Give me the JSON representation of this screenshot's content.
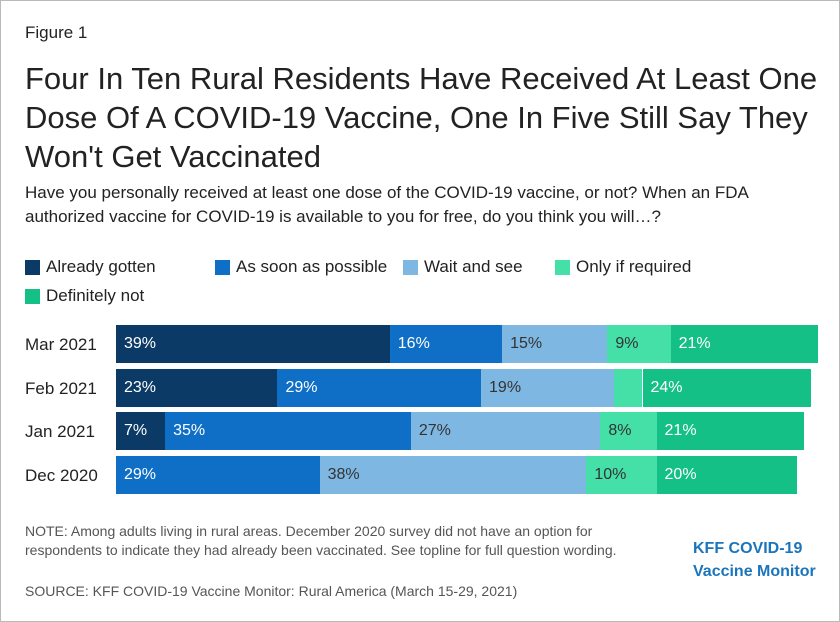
{
  "figure_label": "Figure 1",
  "title": "Four In Ten Rural Residents Have Received At Least One Dose Of A COVID-19 Vaccine, One In Five Still Say They Won't Get Vaccinated",
  "subtitle": "Have you personally received at least one dose of the COVID-19 vaccine, or not? When an FDA authorized vaccine for COVID-19 is available to you for free, do you think you will…?",
  "note": "NOTE: Among adults living in rural areas. December 2020 survey did not have an option for respondents to indicate they had already been vaccinated. See topline for full question wording.",
  "source": "SOURCE: KFF COVID-19 Vaccine Monitor: Rural America (March 15-29, 2021)",
  "logo": {
    "line1": "KFF COVID-19",
    "line2": "Vaccine Monitor"
  },
  "colors": {
    "Already gotten": "#0b3a66",
    "As soon as possible": "#0f6fc6",
    "Wait and see": "#7fb7e3",
    "Only if required": "#45e0a8",
    "Definitely not": "#14c085"
  },
  "chart_data": {
    "type": "bar",
    "orientation": "horizontal",
    "stacked": true,
    "legend_position": "top",
    "categories": [
      "Mar 2021",
      "Feb 2021",
      "Jan 2021",
      "Dec 2020"
    ],
    "series": [
      {
        "name": "Already gotten",
        "values": [
          39,
          23,
          7,
          0
        ],
        "labels": [
          "39%",
          "23%",
          "7%",
          ""
        ]
      },
      {
        "name": "As soon as possible",
        "values": [
          16,
          29,
          35,
          29
        ],
        "labels": [
          "16%",
          "29%",
          "35%",
          "29%"
        ]
      },
      {
        "name": "Wait and see",
        "values": [
          15,
          19,
          27,
          38
        ],
        "labels": [
          "15%",
          "19%",
          "27%",
          "38%"
        ]
      },
      {
        "name": "Only if required",
        "values": [
          9,
          4,
          8,
          10
        ],
        "labels": [
          "9%",
          "",
          "8%",
          "10%"
        ]
      },
      {
        "name": "Definitely not",
        "values": [
          21,
          24,
          21,
          20
        ],
        "labels": [
          "21%",
          "24%",
          "21%",
          "20%"
        ]
      }
    ]
  }
}
